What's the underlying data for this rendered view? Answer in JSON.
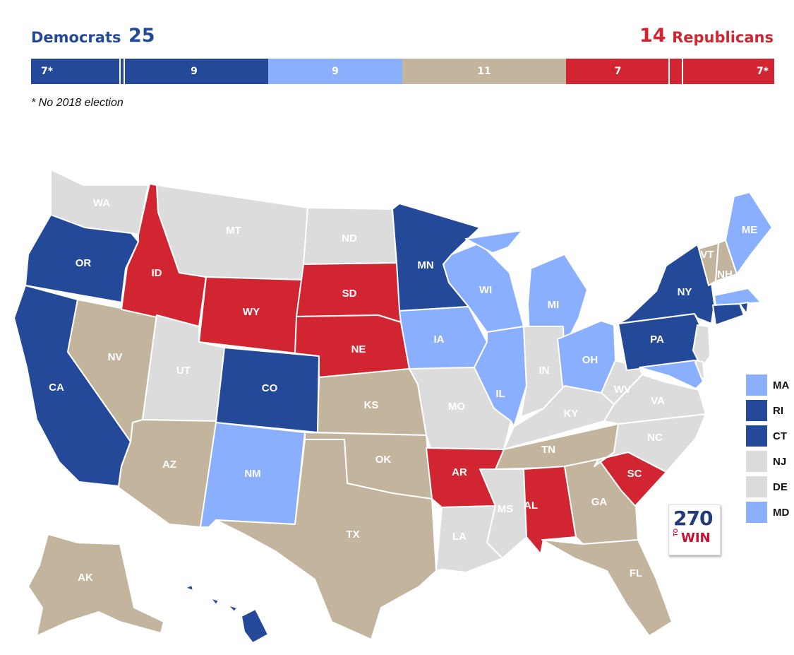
{
  "header": {
    "dem_label": "Democrats",
    "dem_count": "25",
    "rep_count": "14",
    "rep_label": "Republicans"
  },
  "bar": [
    {
      "label": "7*",
      "value": 7,
      "color": "#244999"
    },
    {
      "label": "9",
      "value": 9,
      "color": "#244999"
    },
    {
      "label": "9",
      "value": 9,
      "color": "#8aafff"
    },
    {
      "label": "11",
      "value": 11,
      "color": "#c2b49d"
    },
    {
      "label": "7",
      "value": 7,
      "color": "#d22532"
    },
    {
      "label": "7*",
      "value": 7,
      "color": "#d22532"
    }
  ],
  "footnote": "* No 2018 election",
  "colors": {
    "solid_dem": "#244999",
    "lean_dem": "#8aafff",
    "tossup": "#c2b49d",
    "solid_rep": "#d22532",
    "no_election": "#dcdcdc"
  },
  "states": [
    {
      "abbr": "WA",
      "category": "no_election"
    },
    {
      "abbr": "OR",
      "category": "solid_dem"
    },
    {
      "abbr": "CA",
      "category": "solid_dem"
    },
    {
      "abbr": "NV",
      "category": "tossup"
    },
    {
      "abbr": "ID",
      "category": "solid_rep"
    },
    {
      "abbr": "MT",
      "category": "no_election"
    },
    {
      "abbr": "WY",
      "category": "solid_rep"
    },
    {
      "abbr": "UT",
      "category": "no_election"
    },
    {
      "abbr": "AZ",
      "category": "tossup"
    },
    {
      "abbr": "CO",
      "category": "solid_dem"
    },
    {
      "abbr": "NM",
      "category": "lean_dem"
    },
    {
      "abbr": "ND",
      "category": "no_election"
    },
    {
      "abbr": "SD",
      "category": "solid_rep"
    },
    {
      "abbr": "NE",
      "category": "solid_rep"
    },
    {
      "abbr": "KS",
      "category": "tossup"
    },
    {
      "abbr": "OK",
      "category": "tossup"
    },
    {
      "abbr": "TX",
      "category": "tossup"
    },
    {
      "abbr": "MN",
      "category": "solid_dem"
    },
    {
      "abbr": "IA",
      "category": "lean_dem"
    },
    {
      "abbr": "MO",
      "category": "no_election"
    },
    {
      "abbr": "AR",
      "category": "solid_rep"
    },
    {
      "abbr": "LA",
      "category": "no_election"
    },
    {
      "abbr": "WI",
      "category": "lean_dem"
    },
    {
      "abbr": "IL",
      "category": "lean_dem"
    },
    {
      "abbr": "MI",
      "category": "lean_dem"
    },
    {
      "abbr": "IN",
      "category": "no_election"
    },
    {
      "abbr": "OH",
      "category": "lean_dem"
    },
    {
      "abbr": "KY",
      "category": "no_election"
    },
    {
      "abbr": "TN",
      "category": "tossup"
    },
    {
      "abbr": "MS",
      "category": "no_election"
    },
    {
      "abbr": "AL",
      "category": "solid_rep"
    },
    {
      "abbr": "GA",
      "category": "tossup"
    },
    {
      "abbr": "FL",
      "category": "tossup"
    },
    {
      "abbr": "SC",
      "category": "solid_rep"
    },
    {
      "abbr": "NC",
      "category": "no_election"
    },
    {
      "abbr": "VA",
      "category": "no_election"
    },
    {
      "abbr": "WV",
      "category": "no_election"
    },
    {
      "abbr": "PA",
      "category": "solid_dem"
    },
    {
      "abbr": "NY",
      "category": "solid_dem"
    },
    {
      "abbr": "VT",
      "category": "tossup"
    },
    {
      "abbr": "NH",
      "category": "tossup"
    },
    {
      "abbr": "ME",
      "category": "lean_dem"
    },
    {
      "abbr": "AK",
      "category": "tossup"
    },
    {
      "abbr": "HI",
      "category": "solid_dem"
    }
  ],
  "legend": [
    {
      "abbr": "MA",
      "category": "lean_dem"
    },
    {
      "abbr": "RI",
      "category": "solid_dem"
    },
    {
      "abbr": "CT",
      "category": "solid_dem"
    },
    {
      "abbr": "NJ",
      "category": "no_election"
    },
    {
      "abbr": "DE",
      "category": "no_election"
    },
    {
      "abbr": "MD",
      "category": "lean_dem"
    }
  ],
  "logo": {
    "number": "270",
    "to": "TO",
    "win": "WIN"
  }
}
